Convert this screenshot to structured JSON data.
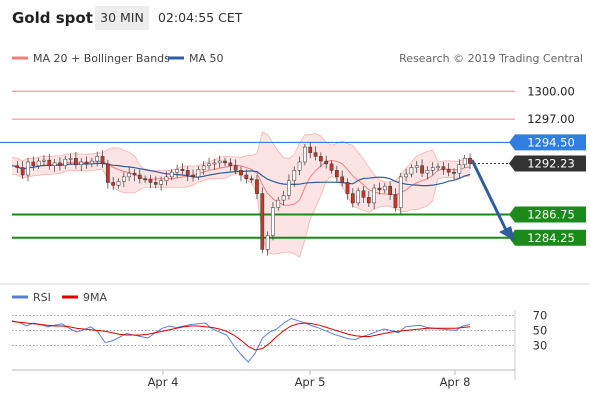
{
  "header": {
    "instrument": "Gold spot",
    "interval": "30 MIN",
    "time": "02:04:55 CET"
  },
  "credit": "Research © 2019 Trading Central",
  "colors": {
    "ma20": "#f08080",
    "ma50": "#2f5d9e",
    "band_fill": "#fde4e4",
    "resistance": "#f08080",
    "pivot": "#2e7fe0",
    "support": "#1a8a1a",
    "candle": "#c0392b",
    "rsi": "#5b7fd6",
    "ma9": "#e00000",
    "arrow": "#2f5d9e"
  },
  "chart_data": [
    {
      "type": "line",
      "title": "Gold spot",
      "legend": [
        {
          "name": "MA 20 + Bollinger Bands",
          "color": "#f08080"
        },
        {
          "name": "MA 50",
          "color": "#2f5d9e"
        }
      ],
      "x_ticks": [
        "Apr 4",
        "Apr 5",
        "Apr 8"
      ],
      "ylim": [
        1279.5,
        1302.5
      ],
      "levels": [
        {
          "value": 1300.0,
          "label": "1300.00",
          "kind": "resistance"
        },
        {
          "value": 1297.0,
          "label": "1297.00",
          "kind": "resistance"
        },
        {
          "value": 1294.5,
          "label": "1294.50",
          "kind": "pivot"
        },
        {
          "value": 1292.23,
          "label": "1292.23",
          "kind": "last"
        },
        {
          "value": 1286.75,
          "label": "1286.75",
          "kind": "support"
        },
        {
          "value": 1284.25,
          "label": "1284.25",
          "kind": "support"
        }
      ],
      "series": [
        {
          "name": "Price",
          "values": [
            1292.0,
            1291.8,
            1291.0,
            1292.4,
            1292.0,
            1292.5,
            1292.6,
            1292.0,
            1292.3,
            1292.0,
            1292.7,
            1292.8,
            1292.1,
            1292.4,
            1292.2,
            1292.5,
            1293.0,
            1292.2,
            1290.2,
            1289.9,
            1290.3,
            1290.8,
            1291.2,
            1291.0,
            1290.6,
            1290.5,
            1290.2,
            1290.0,
            1290.4,
            1290.8,
            1291.3,
            1291.6,
            1291.5,
            1291.0,
            1290.8,
            1291.6,
            1292.0,
            1292.2,
            1292.3,
            1292.5,
            1292.3,
            1292.0,
            1291.5,
            1291.0,
            1290.6,
            1290.5,
            1289.0,
            1283.0,
            1284.5,
            1287.5,
            1288.3,
            1288.8,
            1290.4,
            1291.5,
            1292.4,
            1294.0,
            1293.4,
            1293.0,
            1292.5,
            1292.2,
            1291.5,
            1290.8,
            1290.2,
            1289.0,
            1288.0,
            1289.3,
            1288.6,
            1288.0,
            1289.6,
            1289.4,
            1289.8,
            1288.9,
            1287.5,
            1290.8,
            1291.1,
            1291.8,
            1292.0,
            1291.2,
            1291.5,
            1291.8,
            1291.9,
            1291.6,
            1291.3,
            1291.2,
            1292.1,
            1292.8,
            1292.23
          ]
        },
        {
          "name": "RSI",
          "values": [
            63,
            61,
            56,
            60,
            58,
            55,
            57,
            59,
            53,
            48,
            51,
            55,
            48,
            34,
            36,
            41,
            46,
            44,
            42,
            40,
            47,
            53,
            56,
            54,
            56,
            58,
            59,
            60,
            52,
            48,
            44,
            30,
            18,
            8,
            20,
            40,
            48,
            52,
            60,
            66,
            63,
            60,
            56,
            53,
            49,
            45,
            42,
            39,
            38,
            42,
            45,
            49,
            52,
            50,
            47,
            55,
            56,
            57,
            54,
            53,
            52,
            51,
            50,
            56,
            58
          ]
        },
        {
          "name": "9MA",
          "values": [
            62,
            61,
            60,
            59,
            58,
            57,
            56,
            56,
            55,
            53,
            52,
            51,
            50,
            49,
            47,
            45,
            44,
            44,
            44,
            45,
            47,
            49,
            51,
            53,
            55,
            56,
            56,
            55,
            54,
            52,
            49,
            44,
            37,
            29,
            24,
            26,
            33,
            42,
            50,
            56,
            59,
            60,
            59,
            57,
            54,
            51,
            48,
            45,
            43,
            42,
            42,
            44,
            46,
            48,
            49,
            50,
            51,
            52,
            53,
            53,
            53,
            53,
            53,
            54,
            55
          ]
        }
      ]
    },
    {
      "type": "line",
      "title": "",
      "legend": [
        {
          "name": "RSI",
          "color": "#5b7fd6"
        },
        {
          "name": "9MA",
          "color": "#e00000"
        }
      ],
      "y_ticks": [
        70,
        50,
        30
      ],
      "ylim": [
        0,
        80
      ]
    }
  ]
}
